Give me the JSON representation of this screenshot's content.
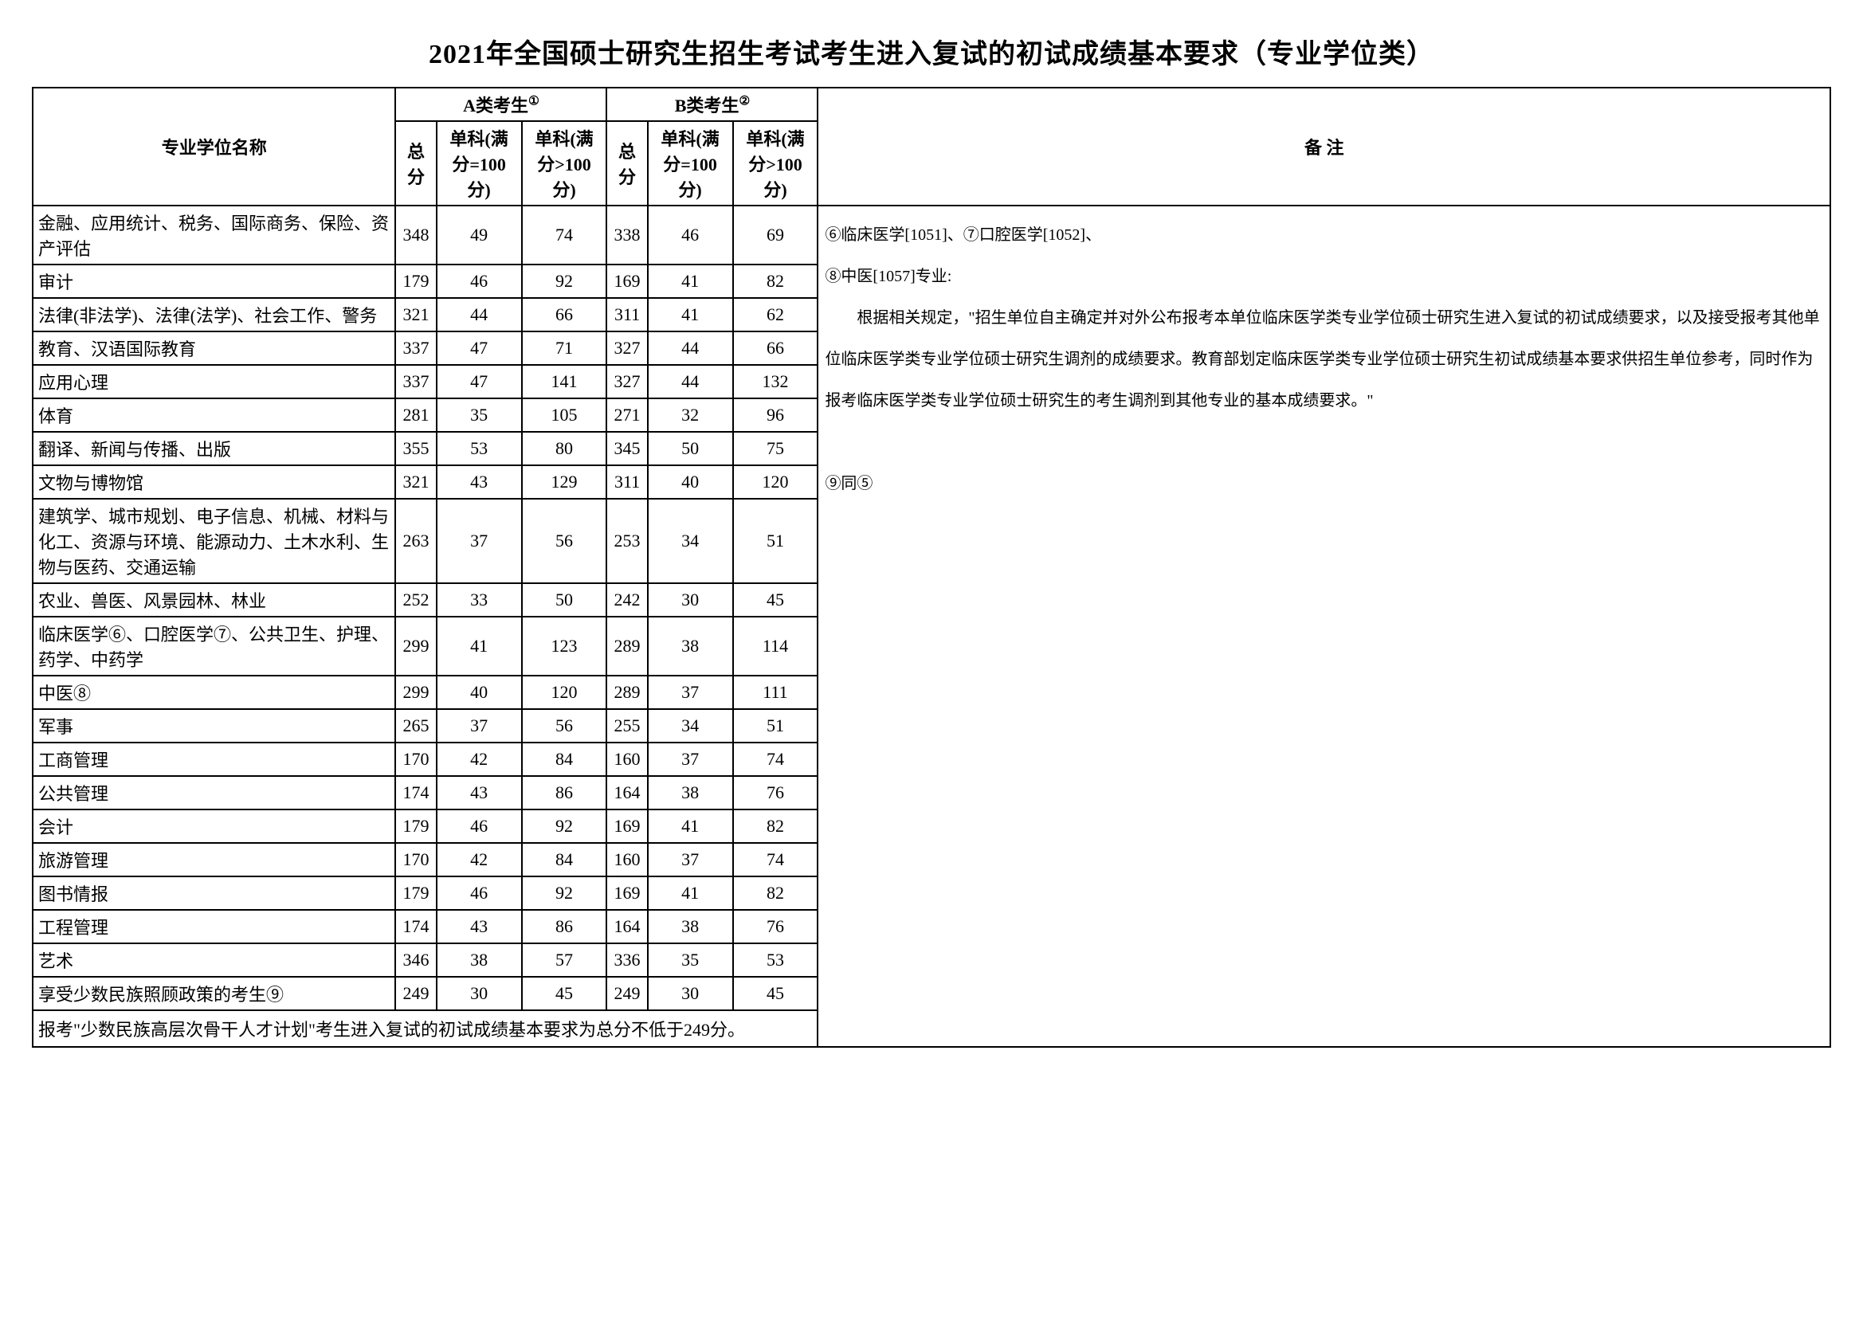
{
  "title": "2021年全国硕士研究生招生考试考生进入复试的初试成绩基本要求（专业学位类）",
  "headers": {
    "major": "专业学位名称",
    "groupA": "A类考生",
    "groupB": "B类考生",
    "total": "总分",
    "sub100": "单科(满分=100分)",
    "subOver100": "单科(满分>100分)",
    "notes": "备  注",
    "supA": "①",
    "supB": "②"
  },
  "rows": [
    {
      "major": "金融、应用统计、税务、国际商务、保险、资产评估",
      "a_total": "348",
      "a_s100": "49",
      "a_g100": "74",
      "b_total": "338",
      "b_s100": "46",
      "b_g100": "69"
    },
    {
      "major": "审计",
      "a_total": "179",
      "a_s100": "46",
      "a_g100": "92",
      "b_total": "169",
      "b_s100": "41",
      "b_g100": "82"
    },
    {
      "major": "法律(非法学)、法律(法学)、社会工作、警务",
      "a_total": "321",
      "a_s100": "44",
      "a_g100": "66",
      "b_total": "311",
      "b_s100": "41",
      "b_g100": "62"
    },
    {
      "major": "教育、汉语国际教育",
      "a_total": "337",
      "a_s100": "47",
      "a_g100": "71",
      "b_total": "327",
      "b_s100": "44",
      "b_g100": "66"
    },
    {
      "major": "应用心理",
      "a_total": "337",
      "a_s100": "47",
      "a_g100": "141",
      "b_total": "327",
      "b_s100": "44",
      "b_g100": "132"
    },
    {
      "major": "体育",
      "a_total": "281",
      "a_s100": "35",
      "a_g100": "105",
      "b_total": "271",
      "b_s100": "32",
      "b_g100": "96"
    },
    {
      "major": "翻译、新闻与传播、出版",
      "a_total": "355",
      "a_s100": "53",
      "a_g100": "80",
      "b_total": "345",
      "b_s100": "50",
      "b_g100": "75"
    },
    {
      "major": "文物与博物馆",
      "a_total": "321",
      "a_s100": "43",
      "a_g100": "129",
      "b_total": "311",
      "b_s100": "40",
      "b_g100": "120"
    },
    {
      "major": "建筑学、城市规划、电子信息、机械、材料与化工、资源与环境、能源动力、土木水利、生物与医药、交通运输",
      "a_total": "263",
      "a_s100": "37",
      "a_g100": "56",
      "b_total": "253",
      "b_s100": "34",
      "b_g100": "51"
    },
    {
      "major": "农业、兽医、风景园林、林业",
      "a_total": "252",
      "a_s100": "33",
      "a_g100": "50",
      "b_total": "242",
      "b_s100": "30",
      "b_g100": "45"
    },
    {
      "major": "临床医学⑥、口腔医学⑦、公共卫生、护理、药学、中药学",
      "a_total": "299",
      "a_s100": "41",
      "a_g100": "123",
      "b_total": "289",
      "b_s100": "38",
      "b_g100": "114"
    },
    {
      "major": "中医⑧",
      "a_total": "299",
      "a_s100": "40",
      "a_g100": "120",
      "b_total": "289",
      "b_s100": "37",
      "b_g100": "111"
    },
    {
      "major": "军事",
      "a_total": "265",
      "a_s100": "37",
      "a_g100": "56",
      "b_total": "255",
      "b_s100": "34",
      "b_g100": "51"
    },
    {
      "major": "工商管理",
      "a_total": "170",
      "a_s100": "42",
      "a_g100": "84",
      "b_total": "160",
      "b_s100": "37",
      "b_g100": "74"
    },
    {
      "major": "公共管理",
      "a_total": "174",
      "a_s100": "43",
      "a_g100": "86",
      "b_total": "164",
      "b_s100": "38",
      "b_g100": "76"
    },
    {
      "major": "会计",
      "a_total": "179",
      "a_s100": "46",
      "a_g100": "92",
      "b_total": "169",
      "b_s100": "41",
      "b_g100": "82"
    },
    {
      "major": "旅游管理",
      "a_total": "170",
      "a_s100": "42",
      "a_g100": "84",
      "b_total": "160",
      "b_s100": "37",
      "b_g100": "74"
    },
    {
      "major": "图书情报",
      "a_total": "179",
      "a_s100": "46",
      "a_g100": "92",
      "b_total": "169",
      "b_s100": "41",
      "b_g100": "82"
    },
    {
      "major": "工程管理",
      "a_total": "174",
      "a_s100": "43",
      "a_g100": "86",
      "b_total": "164",
      "b_s100": "38",
      "b_g100": "76"
    },
    {
      "major": "艺术",
      "a_total": "346",
      "a_s100": "38",
      "a_g100": "57",
      "b_total": "336",
      "b_s100": "35",
      "b_g100": "53"
    },
    {
      "major": "享受少数民族照顾政策的考生⑨",
      "a_total": "249",
      "a_s100": "30",
      "a_g100": "45",
      "b_total": "249",
      "b_s100": "30",
      "b_g100": "45"
    }
  ],
  "footerNote": "报考\"少数民族高层次骨干人才计划\"考生进入复试的初试成绩基本要求为总分不低于249分。",
  "notesText1": "⑥临床医学[1051]、⑦口腔医学[1052]、",
  "notesText2": "⑧中医[1057]专业:",
  "notesText3": "　　根据相关规定，\"招生单位自主确定并对外公布报考本单位临床医学类专业学位硕士研究生进入复试的初试成绩要求，以及接受报考其他单位临床医学类专业学位硕士研究生调剂的成绩要求。教育部划定临床医学类专业学位硕士研究生初试成绩基本要求供招生单位参考，同时作为报考临床医学类专业学位硕士研究生的考生调剂到其他专业的基本成绩要求。\"",
  "notesText4": "⑨同⑤"
}
